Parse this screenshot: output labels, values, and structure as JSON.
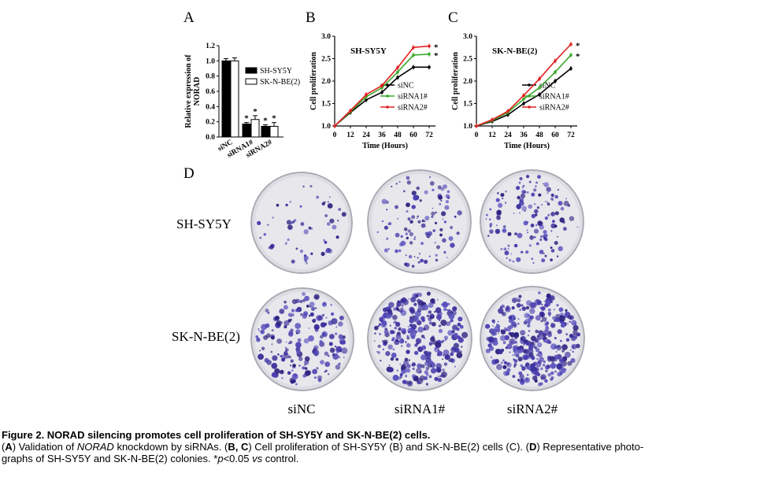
{
  "panels": {
    "A": {
      "letter": "A",
      "chart_data": {
        "type": "bar",
        "categories": [
          "siNC",
          "siRNA1#",
          "siRNA2#"
        ],
        "series": [
          {
            "name": "SH-SY5Y",
            "values": [
              1.0,
              0.17,
              0.14
            ],
            "errors": [
              0.03,
              0.02,
              0.02
            ],
            "color": "#000000"
          },
          {
            "name": "SK-N-BE(2)",
            "values": [
              1.0,
              0.23,
              0.14
            ],
            "errors": [
              0.04,
              0.05,
              0.05
            ],
            "color": "#ffffff"
          }
        ],
        "ylabel": "Relative expression of NORAD",
        "ylim": [
          0,
          1.2
        ],
        "yticks": [
          "0.0",
          "0.2",
          "0.4",
          "0.6",
          "0.8",
          "1.0",
          "1.2"
        ],
        "significance": "*",
        "legend": "right"
      }
    },
    "B": {
      "letter": "B",
      "chart_data": {
        "type": "line",
        "title": "SH-SY5Y",
        "x": [
          0,
          12,
          24,
          36,
          48,
          60,
          72
        ],
        "xlabel": "Time (Hours)",
        "ylabel": "Cell proliferation",
        "ylim": [
          1.0,
          3.0
        ],
        "yticks": [
          "1.0",
          "1.5",
          "2.0",
          "2.5",
          "3.0"
        ],
        "xticks": [
          "0",
          "12",
          "24",
          "36",
          "48",
          "60",
          "72"
        ],
        "series": [
          {
            "name": "siNC",
            "values": [
              1.0,
              1.3,
              1.58,
              1.75,
              2.08,
              2.31,
              2.31
            ],
            "color": "#000000"
          },
          {
            "name": "siRNA1#",
            "values": [
              1.0,
              1.32,
              1.65,
              1.85,
              2.2,
              2.58,
              2.6
            ],
            "color": "#3aa82c"
          },
          {
            "name": "siRNA2#",
            "values": [
              1.0,
              1.34,
              1.7,
              1.9,
              2.3,
              2.75,
              2.78
            ],
            "color": "#e02020"
          }
        ],
        "significance": "*",
        "legend": "center-right"
      }
    },
    "C": {
      "letter": "C",
      "chart_data": {
        "type": "line",
        "title": "SK-N-BE(2)",
        "x": [
          0,
          12,
          24,
          36,
          48,
          60,
          72
        ],
        "xlabel": "Time (Hours)",
        "ylabel": "Cell proliferation",
        "ylim": [
          1.0,
          3.0
        ],
        "yticks": [
          "1.0",
          "1.5",
          "2.0",
          "2.5",
          "3.0"
        ],
        "xticks": [
          "0",
          "12",
          "24",
          "36",
          "48",
          "60",
          "72"
        ],
        "series": [
          {
            "name": "siNC",
            "values": [
              1.0,
              1.1,
              1.25,
              1.5,
              1.7,
              2.0,
              2.28
            ],
            "color": "#000000"
          },
          {
            "name": "siRNA1#",
            "values": [
              1.0,
              1.12,
              1.3,
              1.6,
              1.85,
              2.2,
              2.58
            ],
            "color": "#3aa82c"
          },
          {
            "name": "siRNA2#",
            "values": [
              1.0,
              1.14,
              1.33,
              1.68,
              2.05,
              2.45,
              2.82
            ],
            "color": "#e02020"
          }
        ],
        "significance": "*",
        "legend": "center-right"
      }
    },
    "D": {
      "letter": "D",
      "rows": [
        "SH-SY5Y",
        "SK-N-BE(2)"
      ],
      "columns": [
        "siNC",
        "siRNA1#",
        "siRNA2#"
      ]
    }
  },
  "caption": {
    "title": "Figure 2. NORAD silencing promotes cell proliferation of SH-SY5Y and SK-N-BE(2) cells.",
    "line1_a": "(",
    "A": "A",
    "line1_b": ") Validation of ",
    "norad": "NORAD",
    "line1_c": " knockdown by siRNAs. (",
    "BC": "B, C",
    "line1_d": ") Cell proliferation of SH-SY5Y (B) and SK-N-BE(2) cells (C). (",
    "D": "D",
    "line1_e": ") Representative photo-",
    "line2_a": "graphs of SH-SY5Y and SK-N-BE(2) colonies. *",
    "p": "p",
    "line2_b": "<0.05 ",
    "vs": "vs",
    "line2_c": " control."
  }
}
